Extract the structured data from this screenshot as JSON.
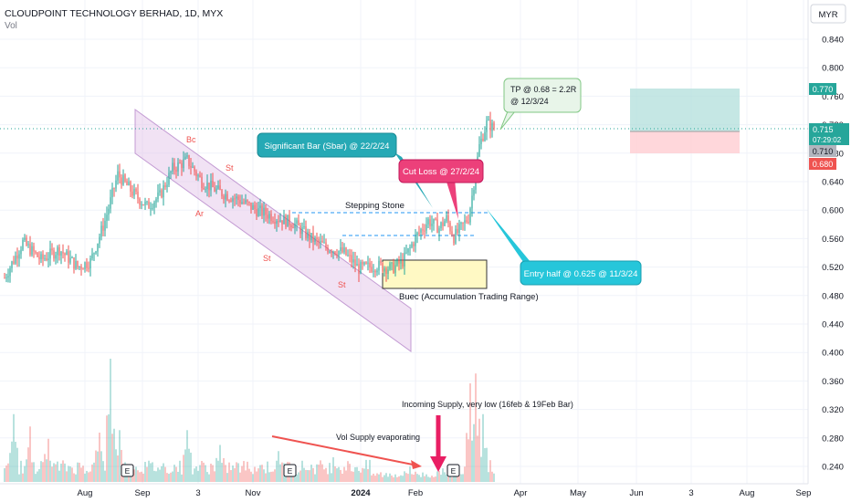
{
  "header": {
    "symbol_title": "CLOUDPOINT TECHNOLOGY BERHAD, 1D, MYX",
    "sub_label": "Vol",
    "currency_button": "MYR"
  },
  "colors": {
    "up": "#26a69a",
    "down": "#ef5350",
    "channel_fill": "#e1bee7",
    "channel_stroke": "#c39bd3",
    "target_zone": "#b2dfdb",
    "stop_zone": "#ffcdd2",
    "callout_teal": "#26a9b5",
    "callout_pink": "#ec407a",
    "callout_green_fill": "#e8f5e9",
    "callout_green_stroke": "#81c784",
    "annotation_red": "#ef5350",
    "accum_box": "#fff9c4"
  },
  "chart_data": {
    "type": "candlestick",
    "title": "CLOUDPOINT TECHNOLOGY BERHAD, 1D, MYX",
    "x_ticks": [
      "Aug",
      "Sep",
      "3",
      "Nov",
      "2024",
      "Feb",
      "Apr",
      "May",
      "Jun",
      "3",
      "Aug",
      "Sep"
    ],
    "y_ticks": [
      "0.840",
      "0.800",
      "0.760",
      "0.720",
      "0.680",
      "0.640",
      "0.600",
      "0.560",
      "0.520",
      "0.480",
      "0.440",
      "0.400",
      "0.360",
      "0.320",
      "0.280",
      "0.240"
    ],
    "price_labels": {
      "target": "0.770",
      "last": "0.715",
      "countdown": "07:29:02",
      "entry": "0.710",
      "stop": "0.680"
    },
    "trend": [
      {
        "x": 0,
        "y": 0.505
      },
      {
        "x": 10,
        "y": 0.555
      },
      {
        "x": 20,
        "y": 0.53
      },
      {
        "x": 30,
        "y": 0.545
      },
      {
        "x": 40,
        "y": 0.52
      },
      {
        "x": 47,
        "y": 0.528
      },
      {
        "x": 55,
        "y": 0.585
      },
      {
        "x": 62,
        "y": 0.65
      },
      {
        "x": 70,
        "y": 0.625
      },
      {
        "x": 78,
        "y": 0.605
      },
      {
        "x": 85,
        "y": 0.62
      },
      {
        "x": 92,
        "y": 0.658
      },
      {
        "x": 100,
        "y": 0.67
      },
      {
        "x": 108,
        "y": 0.64
      },
      {
        "x": 118,
        "y": 0.625
      },
      {
        "x": 128,
        "y": 0.615
      },
      {
        "x": 138,
        "y": 0.6
      },
      {
        "x": 148,
        "y": 0.59
      },
      {
        "x": 158,
        "y": 0.582
      },
      {
        "x": 168,
        "y": 0.56
      },
      {
        "x": 176,
        "y": 0.548
      },
      {
        "x": 186,
        "y": 0.54
      },
      {
        "x": 194,
        "y": 0.518
      },
      {
        "x": 204,
        "y": 0.522
      },
      {
        "x": 212,
        "y": 0.518
      },
      {
        "x": 218,
        "y": 0.528
      },
      {
        "x": 226,
        "y": 0.565
      },
      {
        "x": 232,
        "y": 0.585
      },
      {
        "x": 238,
        "y": 0.575
      },
      {
        "x": 242,
        "y": 0.588
      },
      {
        "x": 246,
        "y": 0.562
      },
      {
        "x": 250,
        "y": 0.575
      },
      {
        "x": 254,
        "y": 0.59
      },
      {
        "x": 256,
        "y": 0.62
      },
      {
        "x": 260,
        "y": 0.69
      },
      {
        "x": 264,
        "y": 0.722
      },
      {
        "x": 268,
        "y": 0.715
      }
    ],
    "volume_peaks": [
      {
        "x": 5,
        "v": 0.55
      },
      {
        "x": 14,
        "v": 0.45
      },
      {
        "x": 24,
        "v": 0.35
      },
      {
        "x": 52,
        "v": 0.4
      },
      {
        "x": 58,
        "v": 1.0
      },
      {
        "x": 63,
        "v": 0.42
      },
      {
        "x": 100,
        "v": 0.42
      },
      {
        "x": 118,
        "v": 0.3
      },
      {
        "x": 150,
        "v": 0.25
      },
      {
        "x": 180,
        "v": 0.2
      },
      {
        "x": 222,
        "v": 0.25
      },
      {
        "x": 240,
        "v": 0.22
      },
      {
        "x": 255,
        "v": 0.8
      },
      {
        "x": 258,
        "v": 0.88
      },
      {
        "x": 262,
        "v": 0.55
      }
    ],
    "volume_ticks": [
      "0.360",
      "0.320",
      "0.280",
      "0.240"
    ]
  },
  "annotations": {
    "channel_labels": [
      "Bc",
      "St",
      "Ar",
      "St",
      "St"
    ],
    "stepping_stone": "Stepping Stone",
    "accumulation": "Buec (Accumulation Trading Range)",
    "significant_bar": "Significant Bar (Sbar) @ 22/2/24",
    "cut_loss": "Cut Loss @ 27/2/24",
    "entry_half": "Entry half @ 0.625 @ 11/3/24",
    "tp_line1": "TP @ 0.68 = 2.2R",
    "tp_line2": "@ 12/3/24",
    "incoming_supply": "Incoming Supply, very low (16feb & 19Feb Bar)",
    "vol_supply": "Vol Supply evaporating",
    "earnings_markers": [
      "E",
      "E",
      "E"
    ]
  }
}
